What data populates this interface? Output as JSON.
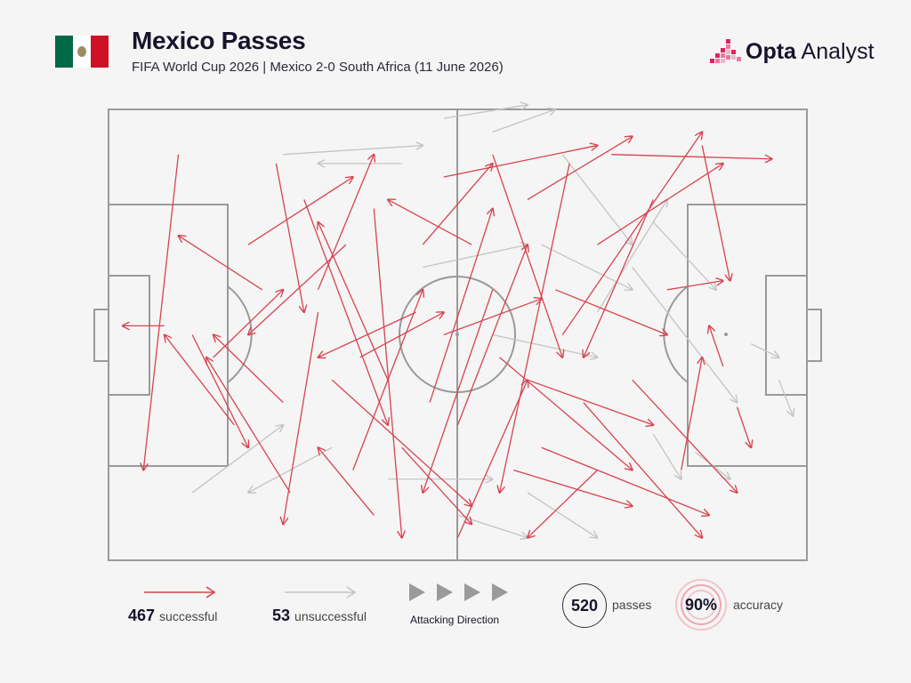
{
  "header": {
    "title": "Mexico Passes",
    "subtitle": "FIFA World Cup 2026 | Mexico 2-0 South Africa (11 June 2026)",
    "brand_bold": "Opta",
    "brand_light": "Analyst"
  },
  "colors": {
    "successful": "#d7434f",
    "unsuccessful": "#c4c4c4",
    "pitch_lines": "#9a9a9a",
    "flag_green": "#006847",
    "flag_white": "#ffffff",
    "flag_red": "#ce1126",
    "brand_accent": "#e0245e"
  },
  "legend": {
    "successful_count": "467",
    "successful_label": "successful",
    "unsuccessful_count": "53",
    "unsuccessful_label": "unsuccessful",
    "direction_label": "Attacking Direction",
    "total_passes": "520",
    "total_passes_label": "passes",
    "accuracy": "90%",
    "accuracy_label": "accuracy"
  },
  "chart_data": {
    "type": "scatter",
    "description_units": "pitch coordinates 0-100 (x = own goal to opponent goal, y = top touchline to bottom touchline)",
    "pass_count": 520,
    "successful_count": 467,
    "unsuccessful_count": 53,
    "xlim": [
      0,
      100
    ],
    "ylim": [
      0,
      100
    ],
    "sample_successful": [
      [
        10,
        10,
        5,
        80
      ],
      [
        15,
        55,
        25,
        40
      ],
      [
        12,
        50,
        20,
        75
      ],
      [
        8,
        48,
        2,
        48
      ],
      [
        20,
        30,
        35,
        15
      ],
      [
        25,
        65,
        15,
        50
      ],
      [
        30,
        40,
        38,
        10
      ],
      [
        35,
        80,
        45,
        40
      ],
      [
        28,
        20,
        40,
        70
      ],
      [
        40,
        60,
        30,
        25
      ],
      [
        45,
        30,
        55,
        12
      ],
      [
        50,
        70,
        60,
        30
      ],
      [
        55,
        40,
        45,
        85
      ],
      [
        48,
        15,
        70,
        8
      ],
      [
        60,
        20,
        75,
        6
      ],
      [
        65,
        50,
        85,
        5
      ],
      [
        70,
        30,
        88,
        12
      ],
      [
        72,
        10,
        95,
        11
      ],
      [
        60,
        60,
        78,
        70
      ],
      [
        58,
        80,
        75,
        88
      ],
      [
        62,
        75,
        86,
        90
      ],
      [
        75,
        60,
        90,
        85
      ],
      [
        80,
        40,
        88,
        38
      ],
      [
        85,
        8,
        89,
        38
      ],
      [
        82,
        80,
        85,
        55
      ],
      [
        90,
        66,
        92,
        75
      ],
      [
        88,
        57,
        86,
        48
      ],
      [
        32,
        60,
        52,
        88
      ],
      [
        30,
        45,
        25,
        92
      ],
      [
        38,
        22,
        42,
        95
      ],
      [
        42,
        75,
        52,
        92
      ],
      [
        50,
        95,
        60,
        60
      ],
      [
        55,
        10,
        65,
        55
      ],
      [
        66,
        12,
        56,
        85
      ],
      [
        70,
        80,
        60,
        95
      ],
      [
        78,
        20,
        68,
        55
      ],
      [
        36,
        55,
        48,
        45
      ],
      [
        44,
        45,
        30,
        55
      ],
      [
        22,
        40,
        10,
        28
      ],
      [
        18,
        70,
        8,
        50
      ],
      [
        26,
        85,
        14,
        55
      ],
      [
        34,
        30,
        20,
        50
      ],
      [
        48,
        50,
        62,
        42
      ],
      [
        52,
        30,
        40,
        20
      ],
      [
        64,
        40,
        80,
        50
      ],
      [
        46,
        65,
        55,
        22
      ],
      [
        38,
        90,
        30,
        75
      ],
      [
        24,
        12,
        28,
        45
      ],
      [
        56,
        55,
        75,
        80
      ],
      [
        68,
        65,
        85,
        95
      ]
    ],
    "sample_unsuccessful": [
      [
        25,
        10,
        45,
        8
      ],
      [
        55,
        5,
        64,
        0
      ],
      [
        48,
        2,
        60,
        -1
      ],
      [
        62,
        30,
        75,
        40
      ],
      [
        70,
        45,
        80,
        20
      ],
      [
        75,
        35,
        90,
        65
      ],
      [
        78,
        25,
        87,
        40
      ],
      [
        92,
        52,
        96,
        55
      ],
      [
        96,
        60,
        98,
        68
      ],
      [
        84,
        76,
        89,
        82
      ],
      [
        78,
        72,
        82,
        82
      ],
      [
        40,
        82,
        55,
        82
      ],
      [
        50,
        90,
        60,
        95
      ],
      [
        60,
        85,
        70,
        95
      ],
      [
        12,
        85,
        25,
        70
      ],
      [
        32,
        75,
        20,
        85
      ],
      [
        45,
        35,
        60,
        30
      ],
      [
        55,
        50,
        70,
        55
      ],
      [
        65,
        10,
        75,
        30
      ],
      [
        42,
        12,
        30,
        12
      ]
    ]
  }
}
